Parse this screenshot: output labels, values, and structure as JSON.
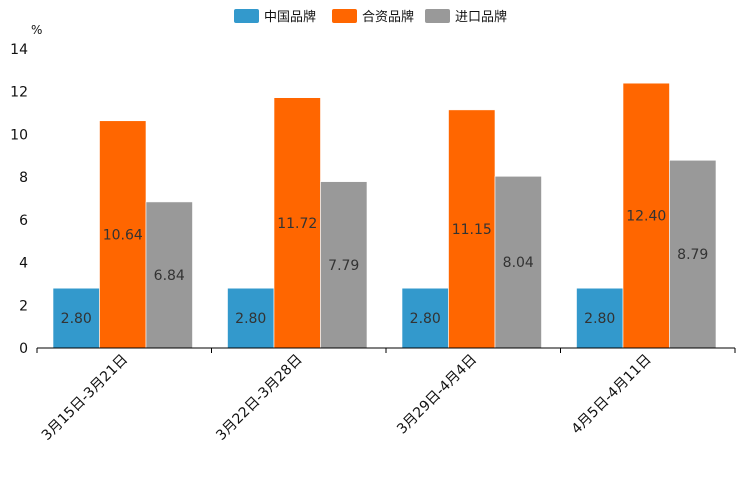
{
  "chart_data": {
    "type": "bar",
    "unit_label": "%",
    "categories": [
      "3月15日-3月21日",
      "3月22日-3月28日",
      "3月29日-4月4日",
      "4月5日-4月11日"
    ],
    "series": [
      {
        "name": "中国品牌",
        "color": "#3399cc",
        "values": [
          2.8,
          2.8,
          2.8,
          2.8
        ],
        "labels": [
          "2.80",
          "2.80",
          "2.80",
          "2.80"
        ]
      },
      {
        "name": "合资品牌",
        "color": "#ff6600",
        "values": [
          10.64,
          11.72,
          11.15,
          12.4
        ],
        "labels": [
          "10.64",
          "11.72",
          "11.15",
          "12.40"
        ]
      },
      {
        "name": "进口品牌",
        "color": "#999999",
        "values": [
          6.84,
          7.79,
          8.04,
          8.79
        ],
        "labels": [
          "6.84",
          "7.79",
          "8.04",
          "8.79"
        ]
      }
    ],
    "ylim": [
      0,
      14
    ],
    "yticks": [
      0,
      2,
      4,
      6,
      8,
      10,
      12,
      14
    ],
    "legend_position": "top-center",
    "grid": false
  }
}
